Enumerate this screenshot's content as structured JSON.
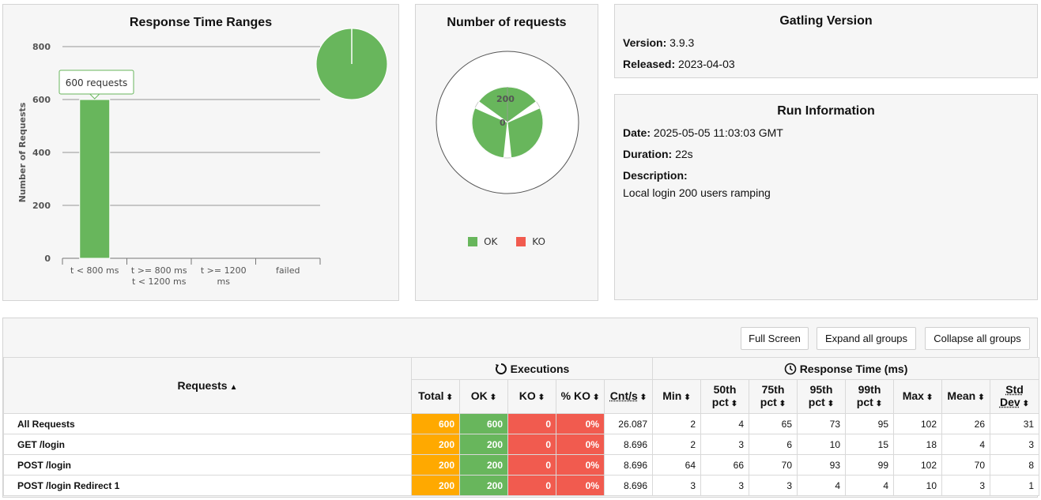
{
  "response_time_ranges": {
    "title": "Response Time Ranges",
    "tooltip": "600 requests",
    "chart_data": {
      "type": "bar",
      "title": "Response Time Ranges",
      "ylabel": "Number of Requests",
      "xlabel": "",
      "ylim": [
        0,
        800
      ],
      "yticks": [
        0,
        200,
        400,
        600,
        800
      ],
      "categories": [
        [
          "t < 800 ms"
        ],
        [
          "t >= 800 ms",
          "t < 1200 ms"
        ],
        [
          "t >= 1200",
          "ms"
        ],
        [
          "failed"
        ]
      ],
      "values": [
        600,
        0,
        0,
        0
      ],
      "bar_color": "#68b65c",
      "pie": {
        "type": "pie",
        "values": [
          600
        ],
        "colors": [
          "#68b65c"
        ]
      },
      "grid": true
    }
  },
  "number_of_requests": {
    "title": "Number of requests",
    "chart_data": {
      "type": "pie",
      "categories": [
        "GET /login",
        "POST /login",
        "POST /login Redirect 1"
      ],
      "values": [
        200,
        200,
        200
      ],
      "radial_max": 200,
      "radial_ticks": [
        "200",
        "0"
      ],
      "colors": [
        "#68b65c",
        "#68b65c",
        "#68b65c"
      ]
    },
    "legend": [
      {
        "label": "OK",
        "color": "#68b65c"
      },
      {
        "label": "KO",
        "color": "#f15b4f"
      }
    ]
  },
  "gatling_version": {
    "title": "Gatling Version",
    "version_label": "Version:",
    "version": "3.9.3",
    "released_label": "Released:",
    "released": "2023-04-03"
  },
  "run_information": {
    "title": "Run Information",
    "date_label": "Date:",
    "date": "2025-05-05 11:03:03 GMT",
    "duration_label": "Duration:",
    "duration": "22s",
    "description_label": "Description:",
    "description": "Local login 200 users ramping"
  },
  "toolbar": {
    "full_screen": "Full Screen",
    "expand_all": "Expand all groups",
    "collapse_all": "Collapse all groups"
  },
  "table": {
    "requests_header": "Requests",
    "executions_header": "Executions",
    "response_time_header": "Response Time (ms)",
    "columns": {
      "total": "Total",
      "ok": "OK",
      "ko": "KO",
      "pct_ko": "% KO",
      "cnt_s": "Cnt/s",
      "min": "Min",
      "p50a": "50th",
      "p50b": "pct",
      "p75a": "75th",
      "p75b": "pct",
      "p95a": "95th",
      "p95b": "pct",
      "p99a": "99th",
      "p99b": "pct",
      "max": "Max",
      "mean": "Mean",
      "std_a": "Std",
      "std_b": "Dev"
    },
    "rows": [
      {
        "name": "All Requests",
        "total": "600",
        "ok": "600",
        "ko": "0",
        "pct_ko": "0%",
        "cnt_s": "26.087",
        "min": "2",
        "p50": "4",
        "p75": "65",
        "p95": "73",
        "p99": "95",
        "max": "102",
        "mean": "26",
        "std": "31"
      },
      {
        "name": "GET /login",
        "total": "200",
        "ok": "200",
        "ko": "0",
        "pct_ko": "0%",
        "cnt_s": "8.696",
        "min": "2",
        "p50": "3",
        "p75": "6",
        "p95": "10",
        "p99": "15",
        "max": "18",
        "mean": "4",
        "std": "3"
      },
      {
        "name": "POST /login",
        "total": "200",
        "ok": "200",
        "ko": "0",
        "pct_ko": "0%",
        "cnt_s": "8.696",
        "min": "64",
        "p50": "66",
        "p75": "70",
        "p95": "93",
        "p99": "99",
        "max": "102",
        "mean": "70",
        "std": "8"
      },
      {
        "name": "POST /login Redirect 1",
        "total": "200",
        "ok": "200",
        "ko": "0",
        "pct_ko": "0%",
        "cnt_s": "8.696",
        "min": "3",
        "p50": "3",
        "p75": "3",
        "p95": "4",
        "p99": "4",
        "max": "10",
        "mean": "3",
        "std": "1"
      }
    ]
  }
}
